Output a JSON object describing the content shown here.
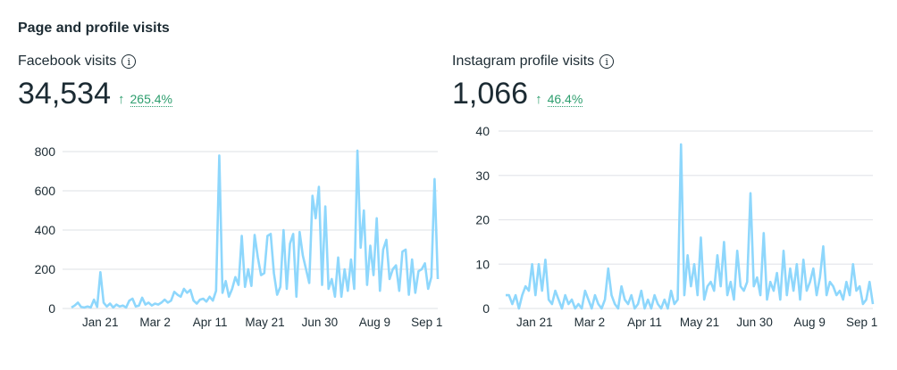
{
  "section_title": "Page and profile visits",
  "panels": [
    {
      "label": "Facebook visits",
      "value": "34,534",
      "change": "265.4%",
      "change_icon": "arrow-up-icon"
    },
    {
      "label": "Instagram profile visits",
      "value": "1,066",
      "change": "46.4%",
      "change_icon": "arrow-up-icon"
    }
  ],
  "colors": {
    "line": "#8ed7fc",
    "grid": "#e4e6eb",
    "positive": "#2e9e6e"
  },
  "chart_data": [
    {
      "type": "line",
      "title": "Facebook visits",
      "ylim": [
        0,
        800
      ],
      "yticks": [
        0,
        200,
        400,
        600,
        800
      ],
      "xlim": [
        0,
        267
      ],
      "xticks": [
        {
          "day": 21,
          "label": "Jan 21"
        },
        {
          "day": 61,
          "label": "Mar 2"
        },
        {
          "day": 101,
          "label": "Apr 11"
        },
        {
          "day": 141,
          "label": "May 21"
        },
        {
          "day": 181,
          "label": "Jun 30"
        },
        {
          "day": 221,
          "label": "Aug 9"
        },
        {
          "day": 259,
          "label": "Sep 1"
        }
      ],
      "step_days": 3,
      "values": [
        5,
        15,
        30,
        8,
        5,
        10,
        5,
        45,
        8,
        185,
        30,
        10,
        25,
        5,
        20,
        10,
        15,
        5,
        40,
        50,
        10,
        15,
        55,
        20,
        30,
        15,
        25,
        20,
        30,
        45,
        30,
        40,
        85,
        70,
        60,
        100,
        80,
        95,
        40,
        25,
        45,
        50,
        35,
        60,
        40,
        90,
        780,
        80,
        140,
        60,
        100,
        160,
        120,
        370,
        110,
        200,
        115,
        375,
        260,
        170,
        180,
        370,
        380,
        180,
        70,
        110,
        400,
        100,
        330,
        380,
        60,
        390,
        270,
        200,
        130,
        575,
        460,
        620,
        120,
        520,
        100,
        150,
        60,
        260,
        60,
        200,
        90,
        250,
        100,
        805,
        310,
        500,
        120,
        320,
        170,
        460,
        90,
        300,
        350,
        150,
        200,
        220,
        90,
        290,
        300,
        70,
        250,
        80,
        190,
        200,
        230,
        100,
        160,
        660,
        150
      ]
    },
    {
      "type": "line",
      "title": "Instagram profile visits",
      "ylim": [
        0,
        40
      ],
      "yticks": [
        0,
        10,
        20,
        30,
        40
      ],
      "xlim": [
        0,
        267
      ],
      "xticks": [
        {
          "day": 21,
          "label": "Jan 21"
        },
        {
          "day": 61,
          "label": "Mar 2"
        },
        {
          "day": 101,
          "label": "Apr 11"
        },
        {
          "day": 141,
          "label": "May 21"
        },
        {
          "day": 181,
          "label": "Jun 30"
        },
        {
          "day": 221,
          "label": "Aug 9"
        },
        {
          "day": 259,
          "label": "Sep 1"
        }
      ],
      "step_days": 3,
      "values": [
        3,
        3,
        1,
        3,
        0,
        3,
        5,
        4,
        10,
        3,
        10,
        4,
        11,
        2,
        1,
        4,
        2,
        0,
        3,
        1,
        2,
        0,
        1,
        0,
        4,
        2,
        0,
        3,
        1,
        0,
        2,
        9,
        3,
        1,
        0,
        5,
        2,
        1,
        3,
        0,
        1,
        4,
        0,
        2,
        0,
        3,
        1,
        0,
        2,
        0,
        4,
        1,
        2,
        37,
        3,
        12,
        5,
        10,
        3,
        16,
        2,
        5,
        6,
        4,
        12,
        5,
        15,
        3,
        6,
        2,
        13,
        5,
        4,
        6,
        26,
        5,
        7,
        3,
        17,
        2,
        6,
        4,
        8,
        2,
        13,
        3,
        9,
        4,
        10,
        2,
        11,
        4,
        6,
        9,
        3,
        7,
        14,
        3,
        6,
        5,
        3,
        4,
        2,
        6,
        3,
        10,
        4,
        5,
        1,
        2,
        6,
        1
      ]
    }
  ]
}
